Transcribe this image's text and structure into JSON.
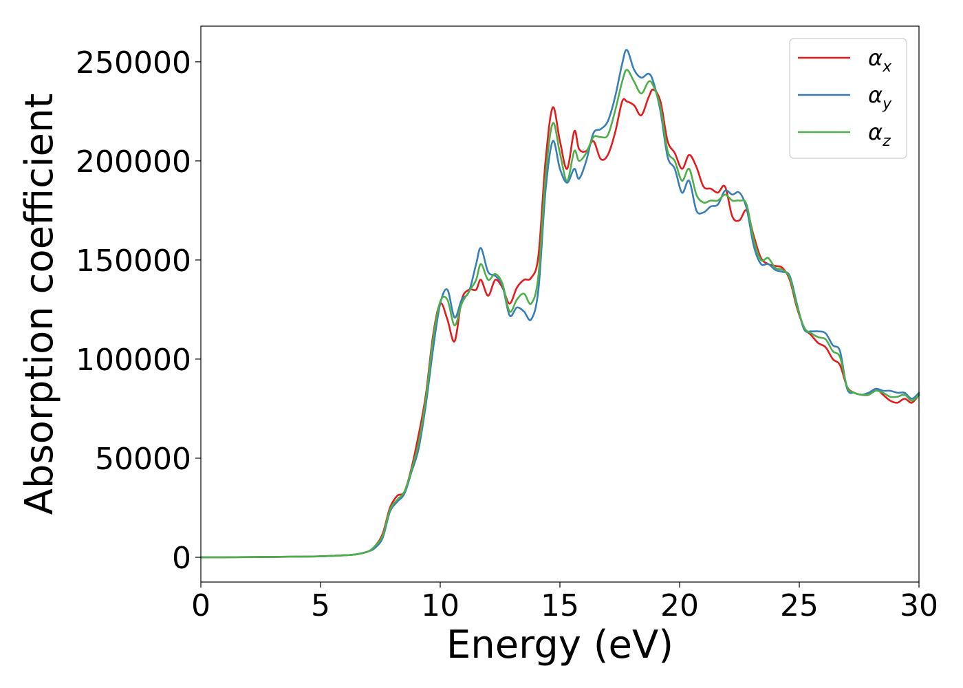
{
  "chart_data": {
    "type": "line",
    "title": "",
    "xlabel": "Energy (eV)",
    "ylabel": "Absorption coefficient",
    "xlim": [
      0,
      30
    ],
    "ylim": [
      -12500,
      268000
    ],
    "xticks": [
      0,
      5,
      10,
      15,
      20,
      25,
      30
    ],
    "yticks": [
      0,
      50000,
      100000,
      150000,
      200000,
      250000
    ],
    "grid": false,
    "legend_position": "top-right",
    "x": [
      0,
      1,
      2,
      3,
      4,
      5,
      6,
      6.5,
      7,
      7.3,
      7.6,
      7.9,
      8.2,
      8.5,
      8.8,
      9.1,
      9.4,
      9.7,
      10,
      10.3,
      10.6,
      10.9,
      11.2,
      11.5,
      11.7,
      12,
      12.3,
      12.6,
      12.9,
      13.2,
      13.5,
      13.8,
      14.1,
      14.4,
      14.7,
      15,
      15.3,
      15.6,
      15.8,
      16.1,
      16.4,
      16.7,
      17,
      17.3,
      17.6,
      17.8,
      18.1,
      18.4,
      18.7,
      18.9,
      19.2,
      19.5,
      19.8,
      20.1,
      20.4,
      20.7,
      21,
      21.3,
      21.6,
      21.9,
      22.2,
      22.5,
      22.8,
      23.1,
      23.4,
      23.7,
      24,
      24.3,
      24.6,
      24.9,
      25.2,
      25.5,
      25.8,
      26.1,
      26.4,
      26.7,
      27,
      27.3,
      27.6,
      27.9,
      28.2,
      28.5,
      28.8,
      29.1,
      29.4,
      29.7,
      30
    ],
    "series": [
      {
        "name": "αx",
        "color": "#e41a1c",
        "values": [
          0,
          0,
          100,
          200,
          300,
          500,
          1000,
          1500,
          3000,
          6000,
          12000,
          25000,
          31000,
          33000,
          45000,
          62000,
          82000,
          112000,
          128000,
          120000,
          109000,
          130000,
          135000,
          135000,
          140000,
          132000,
          140000,
          136000,
          128000,
          136000,
          140000,
          141000,
          152000,
          200000,
          227000,
          210000,
          196000,
          215000,
          206000,
          205000,
          210000,
          201000,
          203000,
          214000,
          230000,
          230000,
          228000,
          223000,
          232000,
          236000,
          230000,
          210000,
          204000,
          196000,
          203000,
          197000,
          187000,
          186000,
          184000,
          187000,
          172000,
          170000,
          175000,
          162000,
          151000,
          148000,
          147000,
          146000,
          140000,
          126000,
          116000,
          112000,
          108000,
          106000,
          100000,
          97000,
          86000,
          83000,
          82000,
          82000,
          85000,
          82000,
          79000,
          78000,
          80000,
          78000,
          82000
        ]
      },
      {
        "name": "αy",
        "color": "#377eb8",
        "values": [
          0,
          0,
          100,
          200,
          300,
          500,
          1000,
          1500,
          3000,
          5000,
          10000,
          23000,
          28000,
          32000,
          43000,
          55000,
          77000,
          105000,
          128000,
          135000,
          121000,
          130000,
          134000,
          148000,
          156000,
          144000,
          142000,
          137000,
          122000,
          126000,
          124000,
          120000,
          135000,
          185000,
          210000,
          196000,
          189000,
          196000,
          191000,
          200000,
          214000,
          216000,
          220000,
          232000,
          249000,
          256000,
          246000,
          242000,
          244000,
          240000,
          225000,
          202000,
          196000,
          184000,
          190000,
          175000,
          174000,
          177000,
          178000,
          185000,
          183000,
          184000,
          176000,
          157000,
          148000,
          148000,
          145000,
          144000,
          142000,
          128000,
          115000,
          114000,
          114000,
          113000,
          107000,
          104000,
          85000,
          83000,
          82000,
          83000,
          85000,
          84000,
          84000,
          83000,
          83000,
          80000,
          83000
        ]
      },
      {
        "name": "αz",
        "color": "#4daf4a",
        "values": [
          0,
          0,
          100,
          200,
          300,
          500,
          1000,
          1500,
          3000,
          6000,
          11000,
          24000,
          29000,
          33000,
          44000,
          58000,
          80000,
          110000,
          129000,
          130000,
          117000,
          128000,
          134000,
          140000,
          148000,
          140000,
          143000,
          138000,
          124000,
          130000,
          133000,
          128000,
          142000,
          192000,
          219000,
          204000,
          190000,
          205000,
          200000,
          204000,
          212000,
          212000,
          213000,
          225000,
          240000,
          246000,
          240000,
          234000,
          240000,
          238000,
          227000,
          205000,
          200000,
          190000,
          196000,
          183000,
          179000,
          180000,
          180000,
          183000,
          180000,
          180000,
          178000,
          160000,
          150000,
          151000,
          146000,
          145000,
          141000,
          127000,
          116000,
          113000,
          111000,
          110000,
          104000,
          101000,
          86000,
          83000,
          82000,
          82000,
          84000,
          83000,
          81000,
          81000,
          82000,
          79000,
          82000
        ]
      }
    ]
  }
}
